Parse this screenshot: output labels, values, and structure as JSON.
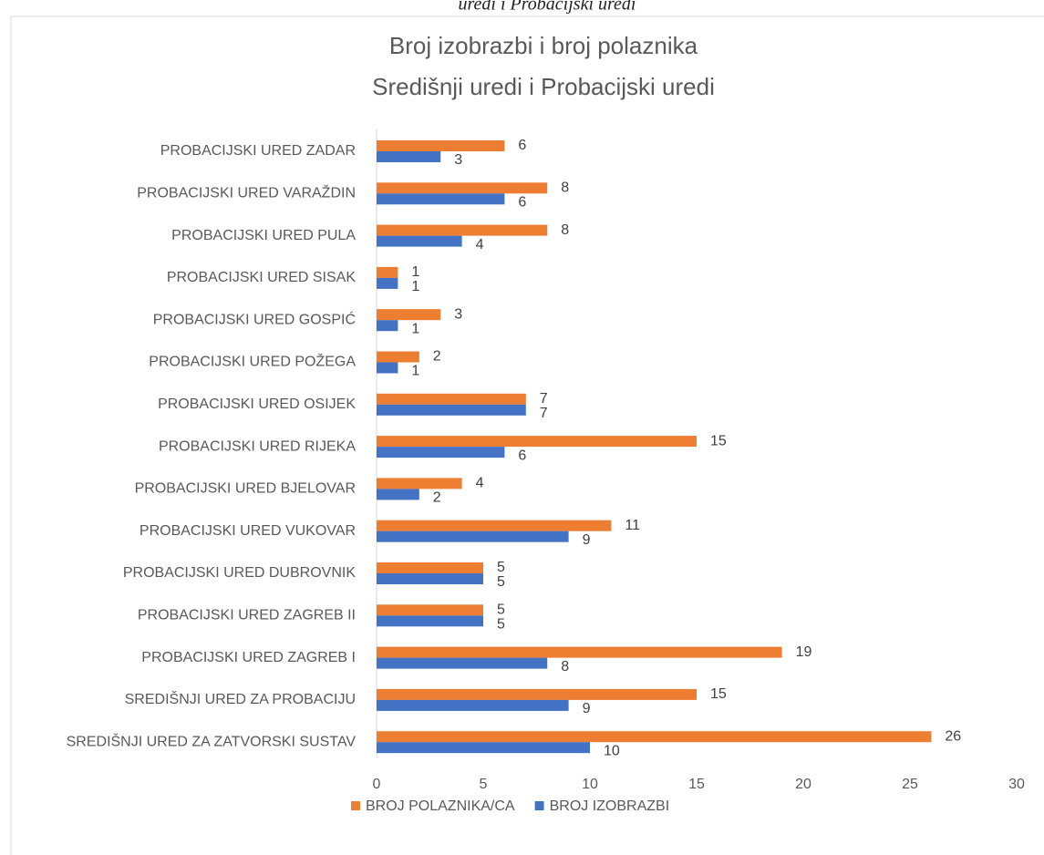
{
  "caption": "uredi i Probacijski uredi",
  "chart_data": {
    "type": "hbar",
    "title": "Broj izobrazbi i broj polaznika",
    "subtitle": "Središnji uredi i Probacijski uredi",
    "categories": [
      "PROBACIJSKI URED ZADAR",
      "PROBACIJSKI URED VARAŽDIN",
      "PROBACIJSKI URED PULA",
      "PROBACIJSKI URED SISAK",
      "PROBACIJSKI URED GOSPIĆ",
      "PROBACIJSKI URED POŽEGA",
      "PROBACIJSKI URED OSIJEK",
      "PROBACIJSKI URED RIJEKA",
      "PROBACIJSKI URED BJELOVAR",
      "PROBACIJSKI URED VUKOVAR",
      "PROBACIJSKI URED DUBROVNIK",
      "PROBACIJSKI URED ZAGREB II",
      "PROBACIJSKI URED ZAGREB I",
      "SREDIŠNJI URED ZA PROBACIJU",
      "SREDIŠNJI URED ZA ZATVORSKI SUSTAV"
    ],
    "series": [
      {
        "name": "BROJ POLAZNIKA/CA",
        "color": "#ED7D31",
        "values": [
          6,
          8,
          8,
          1,
          3,
          2,
          7,
          15,
          4,
          11,
          5,
          5,
          19,
          15,
          26
        ]
      },
      {
        "name": "BROJ IZOBRAZBI",
        "color": "#4472C4",
        "values": [
          3,
          6,
          4,
          1,
          1,
          1,
          7,
          6,
          2,
          9,
          5,
          5,
          8,
          9,
          10
        ]
      }
    ],
    "xlim": [
      0,
      30
    ],
    "xticks": [
      0,
      5,
      10,
      15,
      20,
      25,
      30
    ],
    "grid": false,
    "legend": "bottom"
  }
}
